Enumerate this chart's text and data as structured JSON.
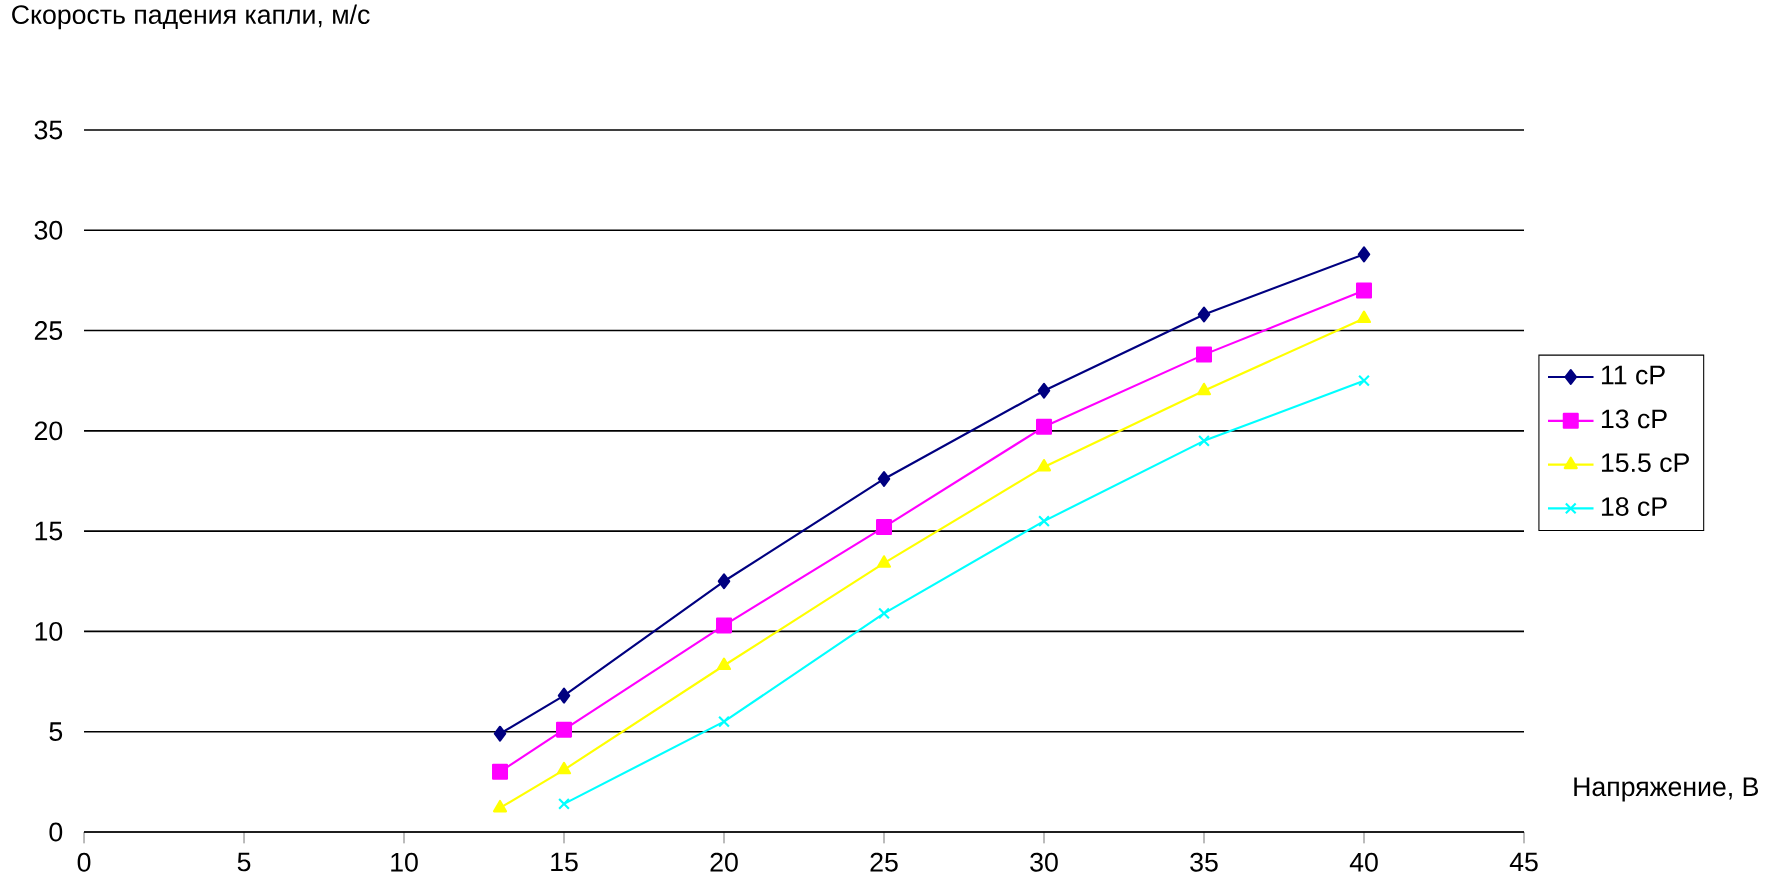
{
  "chart_data": {
    "type": "line",
    "ylabel": "Скорость падения капли, м/с",
    "xlabel": "Напряжение, В",
    "x": [
      13,
      15,
      20,
      25,
      30,
      35,
      40
    ],
    "series": [
      {
        "name": "11 cP",
        "color": "#000080",
        "marker": "diamond",
        "values": [
          4.9,
          6.8,
          12.5,
          17.6,
          22.0,
          25.8,
          28.8
        ]
      },
      {
        "name": "13 cP",
        "color": "#ff00ff",
        "marker": "square",
        "values": [
          3.0,
          5.1,
          10.3,
          15.2,
          20.2,
          23.8,
          27.0
        ]
      },
      {
        "name": "15.5 cP",
        "color": "#ffff00",
        "marker": "triangle",
        "values": [
          1.2,
          3.1,
          8.3,
          13.4,
          18.2,
          22.0,
          25.6
        ]
      },
      {
        "name": "18 cP",
        "color": "#00ffff",
        "marker": "cross",
        "values": [
          null,
          1.4,
          5.5,
          10.9,
          15.5,
          19.5,
          22.5
        ]
      }
    ],
    "xlim": [
      0,
      45
    ],
    "xticks": [
      0,
      5,
      10,
      15,
      20,
      25,
      30,
      35,
      40,
      45
    ],
    "ylim": [
      0,
      35
    ],
    "yticks": [
      0,
      5,
      10,
      15,
      20,
      25,
      30,
      35
    ],
    "grid": "y",
    "legend": "right",
    "line_style": "solid"
  }
}
